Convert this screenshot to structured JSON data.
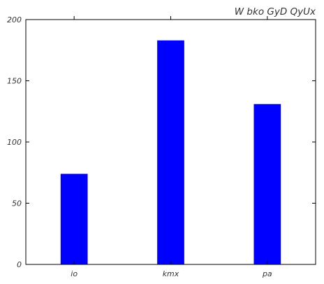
{
  "chart_data": {
    "type": "bar",
    "title": "W bko GyD QyUx",
    "xlabel": "",
    "ylabel": "",
    "categories": [
      "io",
      "kmx",
      "pa"
    ],
    "values": [
      74,
      183,
      131
    ],
    "ylim": [
      0,
      200
    ],
    "yticks": [
      0,
      50,
      100,
      150,
      200
    ],
    "ytick_labels": [
      "0",
      "50",
      "100",
      "150",
      "200"
    ],
    "bar_color": "#0000ff",
    "grid": false,
    "legend": "none"
  }
}
